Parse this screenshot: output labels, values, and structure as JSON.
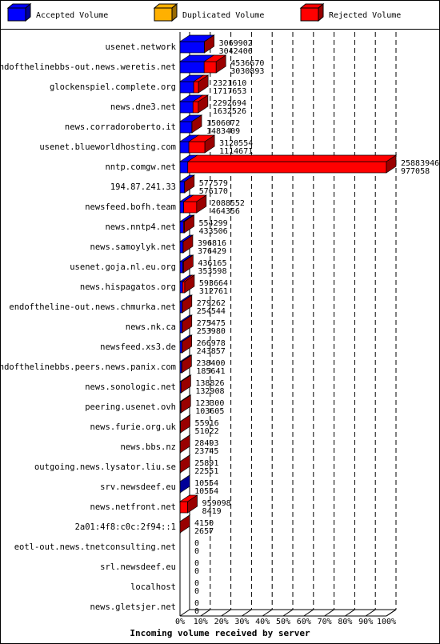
{
  "chart_data": {
    "type": "bar3d",
    "title": "Incoming volume received by server",
    "legend": [
      {
        "name": "Accepted Volume",
        "color": "#0000ff"
      },
      {
        "name": "Duplicated Volume",
        "color": "#ffb000"
      },
      {
        "name": "Rejected Volume",
        "color": "#ff0000"
      }
    ],
    "categories": [
      "usenet.network",
      "endofthelinebbs-out.news.weretis.net",
      "glockenspiel.complete.org",
      "news.dne3.net",
      "news.corradoroberto.it",
      "usenet.blueworldhosting.com",
      "nntp.comgw.net",
      "194.87.241.33",
      "newsfeed.bofh.team",
      "news.nntp4.net",
      "news.samoylyk.net",
      "usenet.goja.nl.eu.org",
      "news.hispagatos.org",
      "endoftheline-out.news.chmurka.net",
      "news.nk.ca",
      "newsfeed.xs3.de",
      "endofthelinebbs.peers.news.panix.com",
      "news.sonologic.net",
      "peering.usenet.ovh",
      "news.furie.org.uk",
      "news.bbs.nz",
      "outgoing.news.lysator.liu.se",
      "srv.newsdeef.eu",
      "news.netfront.net",
      "2a01:4f8:c0c:2f94::1",
      "eotl-out.news.tnetconsulting.net",
      "srl.newsdeef.eu",
      "localhost",
      "news.gletsjer.net"
    ],
    "totals": [
      3069902,
      4536670,
      2321610,
      2292694,
      1506072,
      3120554,
      25883946,
      577579,
      2088552,
      554299,
      396816,
      436165,
      593664,
      279262,
      275475,
      266978,
      238400,
      138826,
      123300,
      55916,
      28493,
      25891,
      10554,
      959098,
      4150,
      0,
      0,
      0,
      0
    ],
    "accepted": [
      3042406,
      3030893,
      1717653,
      1632526,
      1483409,
      1114671,
      977058,
      576170,
      464356,
      433506,
      376429,
      353598,
      312761,
      254544,
      253980,
      243857,
      185641,
      132908,
      103605,
      51022,
      23745,
      22551,
      10554,
      8419,
      2657,
      0,
      0,
      0,
      0
    ],
    "xlim": [
      0,
      25883946
    ],
    "xticks": [
      {
        "value": 0,
        "label": "0%"
      },
      {
        "value": 2588394.6,
        "label": "10%"
      },
      {
        "value": 5176789.2,
        "label": "20%"
      },
      {
        "value": 7765183.8,
        "label": "30%"
      },
      {
        "value": 10353578.4,
        "label": "40%"
      },
      {
        "value": 12941973,
        "label": "50%"
      },
      {
        "value": 15530367.6,
        "label": "60%"
      },
      {
        "value": 18118762.2,
        "label": "70%"
      },
      {
        "value": 20707156.8,
        "label": "80%"
      },
      {
        "value": 23295551.4,
        "label": "90%"
      },
      {
        "value": 25883946,
        "label": "100%"
      }
    ],
    "grid": true
  }
}
